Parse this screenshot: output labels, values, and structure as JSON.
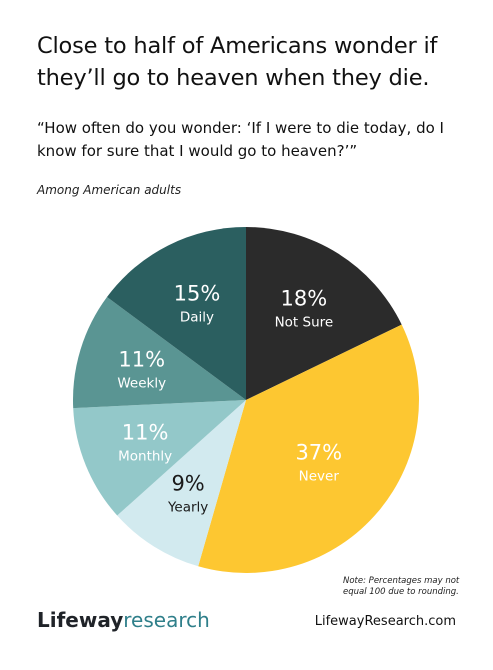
{
  "title": "Close to half of Americans wonder if they’ll go to heaven when they die.",
  "question": "“How often do you wonder: ‘If I were to die today, do I know for sure that I would go to heaven?’”",
  "subtitle": "Among American adults",
  "note": "Note: Percentages may not equal 100 due to rounding.",
  "brand": {
    "part1": "Lifeway",
    "part2": "research"
  },
  "website": "LifewayResearch.com",
  "chart_data": {
    "type": "pie",
    "title": "",
    "slices": [
      {
        "label": "Not Sure",
        "value": 18,
        "display": "18%",
        "color": "#2b2b2b",
        "text_color": "#ffffff"
      },
      {
        "label": "Never",
        "value": 37,
        "display": "37%",
        "color": "#fdc731",
        "text_color": "#ffffff"
      },
      {
        "label": "Yearly",
        "value": 9,
        "display": "9%",
        "color": "#d2eaef",
        "text_color": "#1a1a1a"
      },
      {
        "label": "Monthly",
        "value": 11,
        "display": "11%",
        "color": "#93c8c9",
        "text_color": "#ffffff"
      },
      {
        "label": "Weekly",
        "value": 11,
        "display": "11%",
        "color": "#5a9593",
        "text_color": "#ffffff"
      },
      {
        "label": "Daily",
        "value": 15,
        "display": "15%",
        "color": "#2b5f60",
        "text_color": "#ffffff"
      }
    ]
  }
}
